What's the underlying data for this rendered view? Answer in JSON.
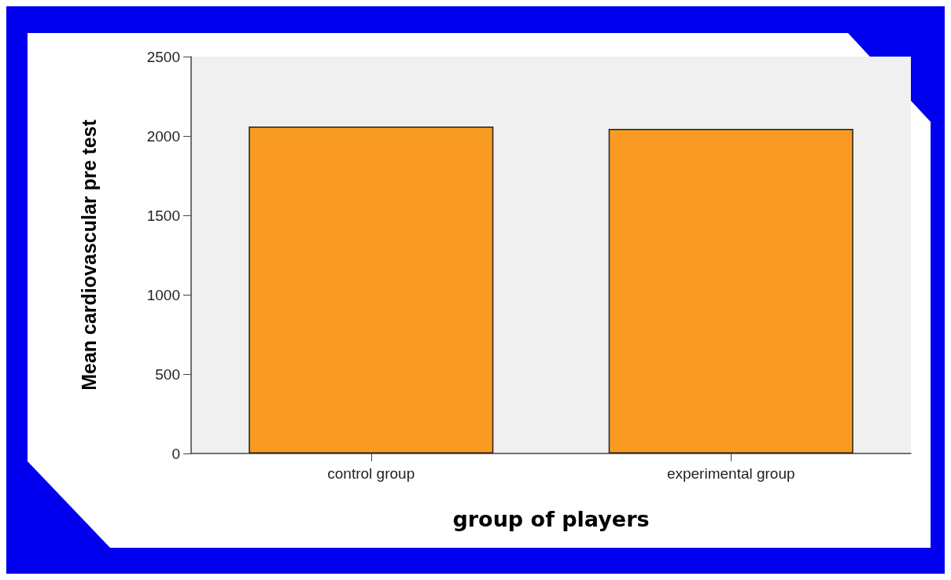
{
  "chart_data": {
    "type": "bar",
    "categories": [
      "control group",
      "experimental group"
    ],
    "values": [
      2060,
      2045
    ],
    "color": "#f99b23",
    "xlabel": "group of players",
    "ylabel": "Mean cardiovascular pre test",
    "ylim": [
      0,
      2500
    ],
    "yticks": [
      0,
      500,
      1000,
      1500,
      2000,
      2500
    ],
    "grid": false
  }
}
